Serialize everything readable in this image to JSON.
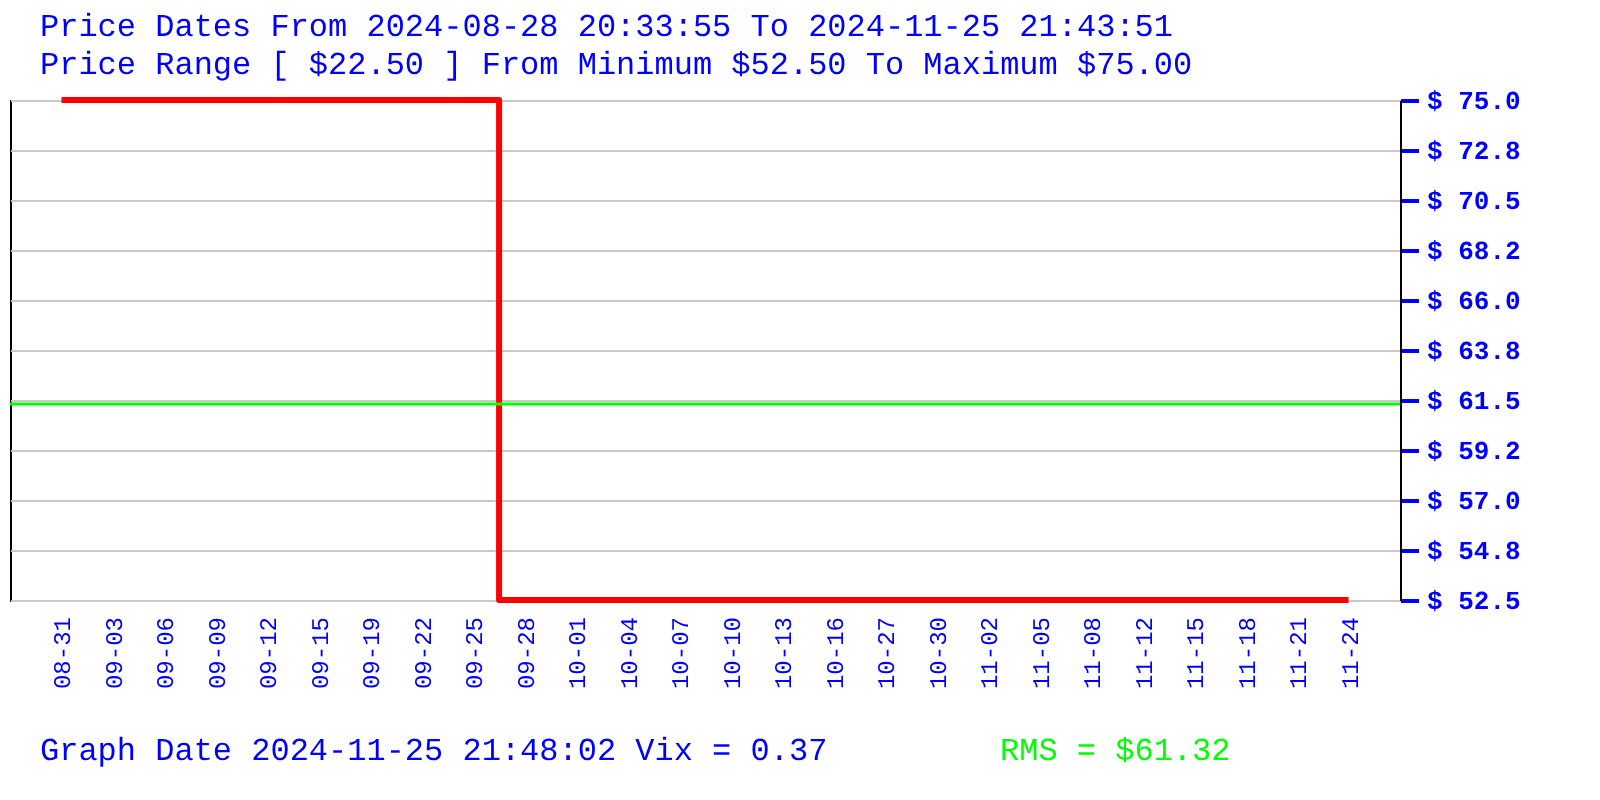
{
  "chart_data": {
    "type": "step",
    "title": "Price Dates From 2024-08-28 20:33:55 To 2024-11-25 21:43:51",
    "subtitle": "Price Range [ $22.50 ] From Minimum $52.50 To Maximum $75.00",
    "annotations": [
      "Graph Date 2024-11-25 21:48:02 Vix = 0.37"
    ],
    "categories": [
      "08-31",
      "09-03",
      "09-06",
      "09-09",
      "09-12",
      "09-15",
      "09-19",
      "09-22",
      "09-25",
      "09-28",
      "10-01",
      "10-04",
      "10-07",
      "10-10",
      "10-13",
      "10-16",
      "10-27",
      "10-30",
      "11-02",
      "11-05",
      "11-08",
      "11-12",
      "11-15",
      "11-18",
      "11-21",
      "11-24"
    ],
    "series": [
      {
        "color": "#ff0000",
        "values": [
          75,
          75,
          75,
          75,
          75,
          75,
          75,
          75,
          75,
          52.5,
          52.5,
          52.5,
          52.5,
          52.5,
          52.5,
          52.5,
          52.5,
          52.5,
          52.5,
          52.5,
          52.5,
          52.5,
          52.5,
          52.5,
          52.5,
          52.5
        ]
      }
    ],
    "ylim": [
      52.5,
      75
    ],
    "yticks": [
      {
        "value": 52.5,
        "label": "$ 52.5"
      },
      {
        "value": 54.75,
        "label": "$ 54.8"
      },
      {
        "value": 57,
        "label": "$ 57.0"
      },
      {
        "value": 59.25,
        "label": "$ 59.2"
      },
      {
        "value": 61.5,
        "label": "$ 61.5"
      },
      {
        "value": 63.75,
        "label": "$ 63.8"
      },
      {
        "value": 66,
        "label": "$ 66.0"
      },
      {
        "value": 68.25,
        "label": "$ 68.2"
      },
      {
        "value": 70.5,
        "label": "$ 70.5"
      },
      {
        "value": 72.75,
        "label": "$ 72.8"
      },
      {
        "value": 75,
        "label": "$ 75.0"
      }
    ],
    "grid": "y",
    "ref_lines": [
      {
        "axis": "y",
        "value": 61.32,
        "label": "RMS = $61.32",
        "color": "#00ff00"
      }
    ]
  }
}
